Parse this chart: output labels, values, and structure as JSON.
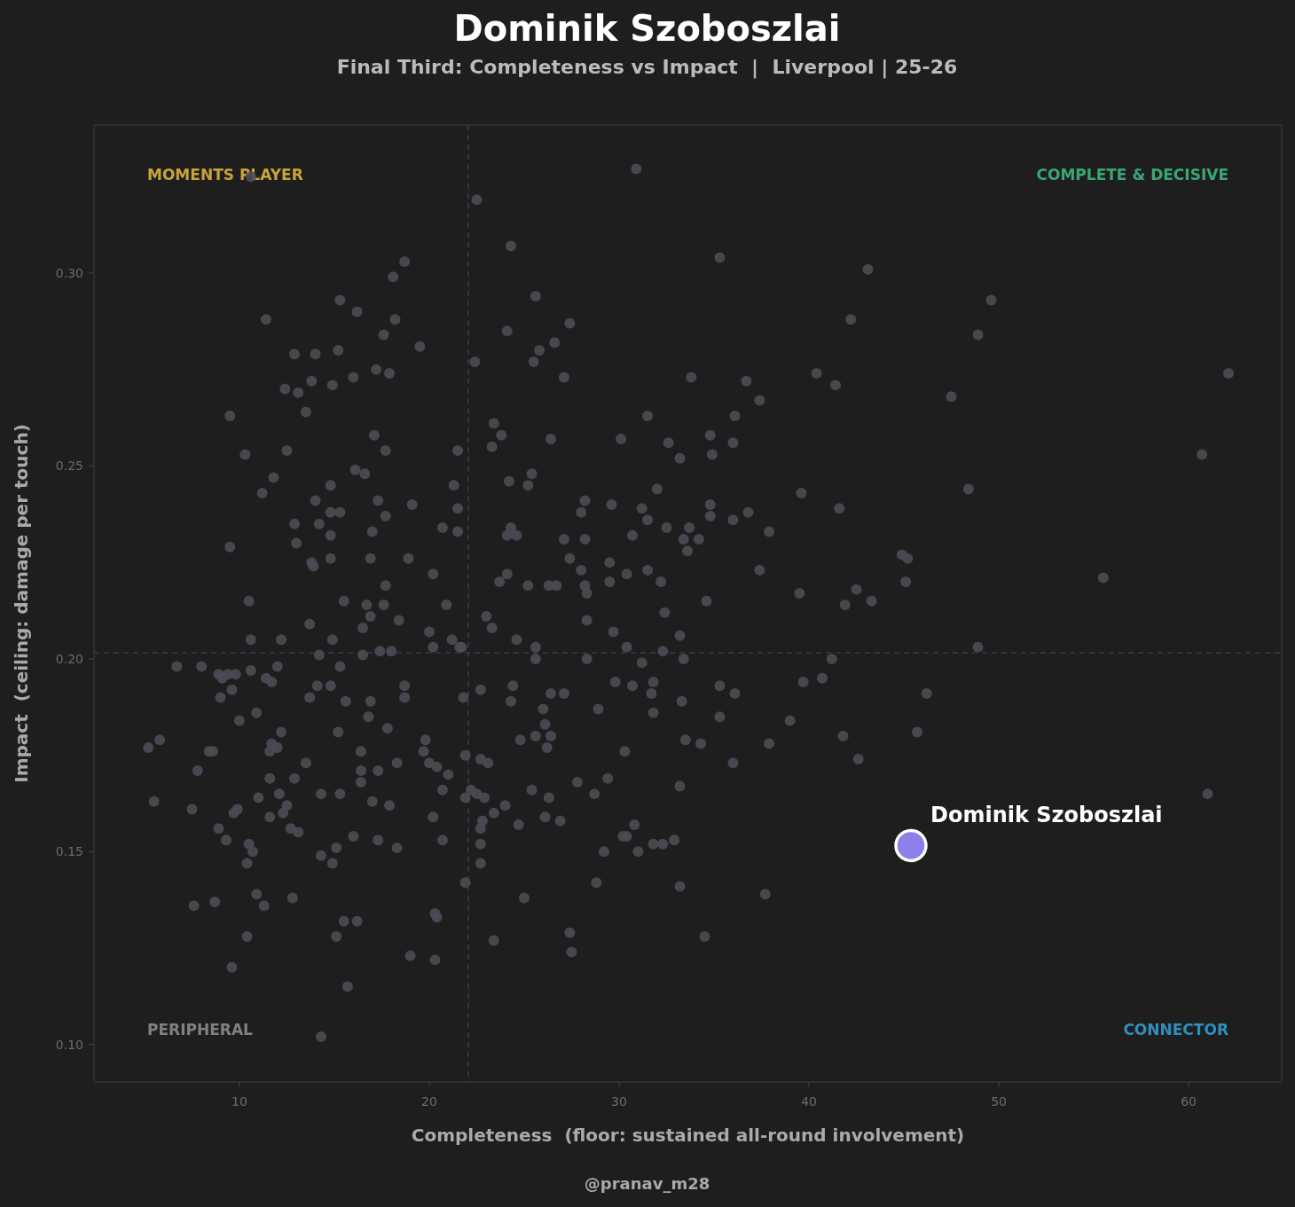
{
  "chart_data": {
    "type": "scatter",
    "title": "Dominik Szoboszlai",
    "subtitle": "Final Third: Completeness vs Impact  |  Liverpool | 25-26",
    "xlabel": "Completeness  (floor: sustained all-round involvement)",
    "ylabel": "Impact  (ceiling: damage per touch)",
    "annotations": [
      "MOMENTS PLAYER",
      "COMPLETE & DECISIVE",
      "PERIPHERAL",
      "CONNECTOR",
      "@pranav_m28"
    ],
    "xlim": [
      2.34,
      64.9
    ],
    "ylim": [
      0.0903,
      0.3384
    ],
    "xticks": [
      10,
      20,
      30,
      40,
      50,
      60
    ],
    "yticks": [
      {
        "value": 0.1,
        "label": "0.10"
      },
      0.15,
      {
        "value": 0.2,
        "label": "0.20"
      },
      0.25,
      {
        "value": 0.3,
        "label": "0.30"
      }
    ],
    "grid": false,
    "marker": "circle",
    "ref_lines": [
      {
        "axis": "x",
        "value": 22.06,
        "line_style": "dashed",
        "color": "#3a3a4a"
      },
      {
        "axis": "y",
        "value": 0.2016,
        "line_style": "dashed",
        "color": "#3a3a4a"
      }
    ],
    "series": [
      {
        "color": "#4b4b55",
        "x": [
          30.9,
          22.5,
          24.3,
          18.7,
          35.3,
          43.1,
          18.1,
          49.6,
          25.6,
          15.3,
          16.2,
          11.4,
          18.2,
          42.2,
          27.4,
          24.1,
          48.9,
          17.6,
          26.6,
          19.5,
          14.0,
          12.9,
          15.2,
          25.8,
          25.5,
          22.4,
          17.2,
          40.4,
          62.1,
          33.8,
          17.9,
          27.1,
          16.0,
          13.8,
          36.7,
          41.4,
          14.9,
          12.4,
          47.5,
          13.1,
          37.4,
          13.5,
          9.5,
          31.5,
          36.1,
          23.4,
          23.8,
          17.1,
          34.8,
          30.1,
          26.4,
          36.0,
          32.6,
          23.3,
          17.7,
          12.5,
          21.5,
          34.9,
          60.7,
          10.3,
          33.2,
          16.1,
          25.4,
          16.6,
          11.8,
          24.2,
          21.3,
          14.8,
          25.2,
          48.4,
          39.6,
          32.0,
          11.2,
          28.2,
          14.0,
          19.1,
          17.3,
          34.8,
          29.6,
          31.2,
          21.5,
          41.6,
          36.8,
          28.0,
          14.8,
          15.3,
          34.8,
          17.7,
          12.9,
          14.2,
          24.3,
          36.0,
          31.5,
          20.7,
          33.7,
          17.0,
          32.5,
          37.9,
          21.5,
          14.8,
          24.1,
          30.7,
          24.6,
          33.4,
          27.1,
          34.2,
          28.2,
          13.0,
          9.5,
          33.6,
          44.9,
          45.2,
          27.4,
          16.9,
          29.5,
          14.8,
          18.9,
          13.8,
          13.9,
          20.2,
          31.5,
          30.4,
          28.0,
          24.1,
          37.4,
          55.5,
          23.7,
          25.2,
          32.2,
          26.3,
          45.1,
          28.2,
          29.5,
          26.7,
          42.5,
          17.7,
          28.3,
          39.5,
          10.5,
          15.5,
          20.9,
          34.6,
          43.3,
          41.9,
          16.7,
          17.6,
          23.0,
          16.9,
          32.4,
          28.3,
          18.4,
          13.7,
          23.3,
          16.5,
          20.0,
          29.7,
          10.6,
          14.9,
          12.2,
          24.6,
          33.2,
          21.2,
          21.6,
          20.2,
          30.4,
          25.6,
          48.9,
          32.3,
          18.0,
          17.4,
          16.5,
          21.7,
          14.2,
          28.3,
          33.4,
          25.6,
          41.2,
          6.7,
          8.0,
          10.6,
          12.0,
          31.2,
          15.3,
          8.9,
          9.4,
          9.8,
          9.1,
          11.4,
          11.7,
          14.8,
          14.1,
          18.7,
          31.8,
          39.7,
          40.7,
          29.8,
          24.4,
          26.4,
          30.7,
          35.3,
          22.7,
          9.6,
          31.7,
          27.1,
          36.1,
          13.7,
          15.6,
          46.2,
          18.7,
          21.8,
          9.0,
          24.3,
          16.9,
          33.3,
          26.0,
          28.9,
          31.8,
          10.9,
          35.3,
          16.8,
          39.0,
          10.0,
          26.1,
          12.2,
          15.2,
          17.8,
          45.7,
          41.8,
          24.8,
          25.6,
          26.4,
          33.5,
          11.7,
          19.8,
          37.9,
          5.2,
          5.8,
          34.3,
          12.0,
          16.4,
          8.4,
          8.6,
          11.6,
          19.7,
          26.2,
          30.3,
          21.9,
          42.6,
          22.7,
          13.5,
          36.0,
          23.1,
          18.3,
          20.0,
          7.8,
          16.4,
          17.3,
          20.4,
          21.0,
          11.6,
          12.9,
          16.4,
          29.4,
          27.8,
          33.2,
          22.2,
          20.7,
          14.3,
          15.3,
          12.1,
          25.4,
          28.7,
          11.0,
          22.5,
          61.0,
          5.5,
          17.0,
          17.9,
          21.9,
          22.9,
          24.0,
          26.3,
          12.5,
          7.5,
          9.9,
          9.7,
          12.3,
          20.2,
          23.4,
          26.1,
          26.9,
          11.6,
          30.8,
          22.8,
          24.7,
          12.7,
          8.9,
          13.1,
          22.7,
          30.2,
          30.4,
          9.3,
          16.0,
          17.3,
          20.7,
          31.8,
          32.9,
          32.3,
          22.7,
          10.5,
          15.1,
          18.3,
          10.7,
          29.2,
          31.0,
          14.3,
          14.9,
          10.4,
          22.7,
          21.9,
          28.8,
          33.2,
          37.7,
          10.9,
          25.0,
          11.3,
          7.6,
          8.7,
          12.8,
          20.3,
          20.4,
          15.5,
          16.2,
          27.4,
          10.4,
          15.1,
          23.4,
          34.5,
          27.5,
          19.0,
          20.3,
          9.6,
          15.7,
          14.3,
          10.6
        ],
        "values": [
          0.327,
          0.319,
          0.307,
          0.303,
          0.304,
          0.301,
          0.299,
          0.293,
          0.294,
          0.293,
          0.29,
          0.288,
          0.288,
          0.288,
          0.287,
          0.285,
          0.284,
          0.284,
          0.282,
          0.281,
          0.279,
          0.279,
          0.28,
          0.28,
          0.277,
          0.277,
          0.275,
          0.274,
          0.274,
          0.273,
          0.274,
          0.273,
          0.273,
          0.272,
          0.272,
          0.271,
          0.271,
          0.27,
          0.268,
          0.269,
          0.267,
          0.264,
          0.263,
          0.263,
          0.263,
          0.261,
          0.258,
          0.258,
          0.258,
          0.257,
          0.257,
          0.256,
          0.256,
          0.255,
          0.254,
          0.254,
          0.254,
          0.253,
          0.253,
          0.253,
          0.252,
          0.249,
          0.248,
          0.248,
          0.247,
          0.246,
          0.245,
          0.245,
          0.245,
          0.244,
          0.243,
          0.244,
          0.243,
          0.241,
          0.241,
          0.24,
          0.241,
          0.24,
          0.24,
          0.239,
          0.239,
          0.239,
          0.238,
          0.238,
          0.238,
          0.238,
          0.237,
          0.237,
          0.235,
          0.235,
          0.234,
          0.236,
          0.236,
          0.234,
          0.234,
          0.233,
          0.234,
          0.233,
          0.233,
          0.232,
          0.232,
          0.232,
          0.232,
          0.231,
          0.231,
          0.231,
          0.231,
          0.23,
          0.229,
          0.228,
          0.227,
          0.226,
          0.226,
          0.226,
          0.225,
          0.226,
          0.226,
          0.225,
          0.224,
          0.222,
          0.223,
          0.222,
          0.223,
          0.222,
          0.223,
          0.221,
          0.22,
          0.219,
          0.22,
          0.219,
          0.22,
          0.219,
          0.22,
          0.219,
          0.218,
          0.219,
          0.217,
          0.217,
          0.215,
          0.215,
          0.214,
          0.215,
          0.215,
          0.214,
          0.214,
          0.214,
          0.211,
          0.211,
          0.212,
          0.21,
          0.21,
          0.209,
          0.208,
          0.208,
          0.207,
          0.207,
          0.205,
          0.205,
          0.205,
          0.205,
          0.206,
          0.205,
          0.203,
          0.203,
          0.203,
          0.203,
          0.203,
          0.202,
          0.202,
          0.202,
          0.201,
          0.203,
          0.201,
          0.2,
          0.2,
          0.2,
          0.2,
          0.198,
          0.198,
          0.197,
          0.198,
          0.199,
          0.198,
          0.196,
          0.196,
          0.196,
          0.195,
          0.195,
          0.194,
          0.193,
          0.193,
          0.193,
          0.194,
          0.194,
          0.195,
          0.194,
          0.193,
          0.191,
          0.193,
          0.193,
          0.192,
          0.192,
          0.191,
          0.191,
          0.191,
          0.19,
          0.189,
          0.191,
          0.19,
          0.19,
          0.19,
          0.189,
          0.189,
          0.189,
          0.187,
          0.187,
          0.186,
          0.186,
          0.185,
          0.185,
          0.184,
          0.184,
          0.183,
          0.181,
          0.181,
          0.182,
          0.181,
          0.18,
          0.179,
          0.18,
          0.18,
          0.179,
          0.178,
          0.179,
          0.178,
          0.177,
          0.179,
          0.178,
          0.177,
          0.176,
          0.176,
          0.176,
          0.176,
          0.176,
          0.177,
          0.176,
          0.175,
          0.174,
          0.174,
          0.173,
          0.173,
          0.173,
          0.173,
          0.173,
          0.171,
          0.171,
          0.171,
          0.172,
          0.17,
          0.169,
          0.169,
          0.168,
          0.169,
          0.168,
          0.167,
          0.166,
          0.166,
          0.165,
          0.165,
          0.165,
          0.166,
          0.165,
          0.164,
          0.165,
          0.165,
          0.163,
          0.163,
          0.162,
          0.164,
          0.164,
          0.162,
          0.164,
          0.162,
          0.161,
          0.161,
          0.16,
          0.16,
          0.159,
          0.16,
          0.159,
          0.158,
          0.159,
          0.157,
          0.158,
          0.157,
          0.156,
          0.156,
          0.155,
          0.156,
          0.154,
          0.154,
          0.153,
          0.154,
          0.153,
          0.153,
          0.152,
          0.153,
          0.152,
          0.152,
          0.152,
          0.151,
          0.151,
          0.15,
          0.15,
          0.15,
          0.149,
          0.147,
          0.147,
          0.147,
          0.142,
          0.142,
          0.141,
          0.139,
          0.139,
          0.138,
          0.136,
          0.136,
          0.137,
          0.138,
          0.134,
          0.133,
          0.132,
          0.132,
          0.129,
          0.128,
          0.128,
          0.127,
          0.128,
          0.124,
          0.123,
          0.122,
          0.12,
          0.115,
          0.102,
          0.325
        ]
      },
      {
        "name": "Dominik Szoboszlai",
        "color": "#8b7fe8",
        "x": [
          45.37
        ],
        "values": [
          0.1516
        ]
      }
    ]
  }
}
